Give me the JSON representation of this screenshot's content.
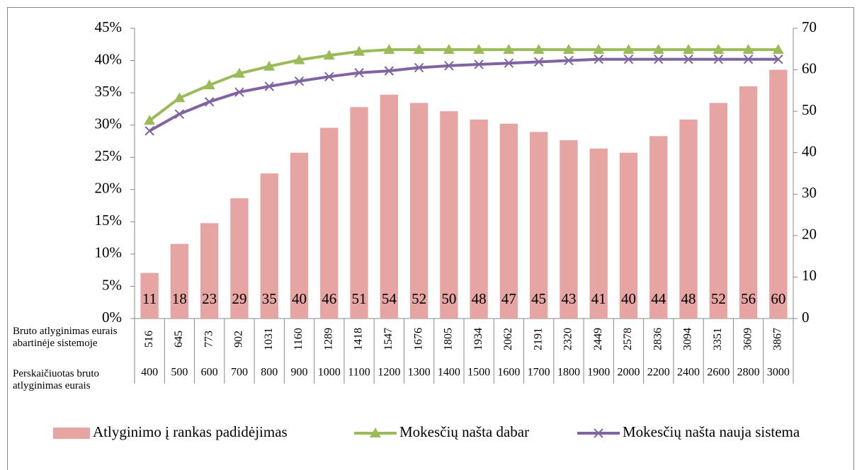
{
  "chart_data": {
    "type": "bar-line",
    "ylim": [
      0,
      45
    ],
    "yticks": [
      {
        "value": 0,
        "label": "0%"
      },
      {
        "value": 5,
        "label": "5%"
      },
      {
        "value": 10,
        "label": "10%"
      },
      {
        "value": 15,
        "label": "15%"
      },
      {
        "value": 20,
        "label": "20%"
      },
      {
        "value": 25,
        "label": "25%"
      },
      {
        "value": 30,
        "label": "30%"
      },
      {
        "value": 35,
        "label": "35%"
      },
      {
        "value": 40,
        "label": "40%"
      },
      {
        "value": 45,
        "label": "45%"
      }
    ],
    "y2lim": [
      0,
      70
    ],
    "y2ticks": [
      0,
      10,
      20,
      30,
      40,
      50,
      60,
      70
    ],
    "legend": "bottom",
    "series": [
      {
        "name": "Atlyginimo į rankas padidėjimas",
        "type": "bar",
        "axis": "y2",
        "color": "#e6a5a2",
        "values": [
          11,
          18,
          23,
          29,
          35,
          40,
          46,
          51,
          54,
          52,
          50,
          48,
          47,
          45,
          43,
          41,
          40,
          44,
          48,
          52,
          56,
          60
        ]
      },
      {
        "name": "Mokesčių našta dabar",
        "type": "line",
        "marker": "triangle",
        "axis": "y",
        "color": "#9bbb59",
        "values": [
          30.7,
          34.2,
          36.2,
          38,
          39.1,
          40.1,
          40.8,
          41.4,
          41.7,
          41.7,
          41.7,
          41.7,
          41.7,
          41.7,
          41.7,
          41.7,
          41.7,
          41.7,
          41.7,
          41.7,
          41.7,
          41.7
        ]
      },
      {
        "name": "Mokesčių našta nauja sistema",
        "type": "line",
        "marker": "x",
        "axis": "y",
        "color": "#8064a2",
        "values": [
          29.1,
          31.7,
          33.6,
          35.1,
          36,
          36.8,
          37.5,
          38.1,
          38.4,
          38.9,
          39.2,
          39.4,
          39.6,
          39.8,
          40,
          40.2,
          40.2,
          40.2,
          40.2,
          40.2,
          40.2,
          40.2
        ]
      }
    ],
    "table": {
      "rows": [
        {
          "label": "Bruto atlyginimas eurais abartinėje sistemoje",
          "cells": [
            516,
            645,
            773,
            902,
            1031,
            1160,
            1289,
            1418,
            1547,
            1676,
            1805,
            1934,
            2062,
            2191,
            2320,
            2449,
            2578,
            2836,
            3094,
            3351,
            3609,
            3867
          ]
        },
        {
          "label": "Perskaičiuotas bruto atlyginimas eurais",
          "cells": [
            400,
            500,
            600,
            700,
            800,
            900,
            1000,
            1100,
            1200,
            1300,
            1400,
            1500,
            1600,
            1700,
            1800,
            1900,
            2000,
            2200,
            2400,
            2600,
            2800,
            3000
          ]
        }
      ]
    }
  }
}
